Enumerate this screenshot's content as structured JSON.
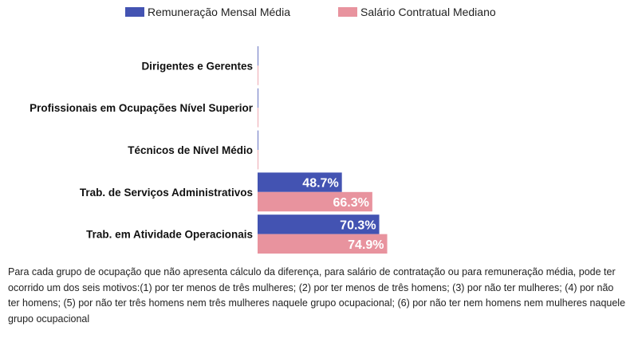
{
  "colors": {
    "series1": "#4353b2",
    "series2": "#e8939e"
  },
  "chart_data": {
    "type": "bar",
    "orientation": "horizontal",
    "title": "",
    "xlabel": "",
    "ylabel": "",
    "categories": [
      "Dirigentes e Gerentes",
      "Profissionais em Ocupações Nível Superior",
      "Técnicos de Nível Médio",
      "Trab. de Serviços Administrativos",
      "Trab. em Atividade Operacionais"
    ],
    "series": [
      {
        "name": "Remuneração Mensal Média",
        "values": [
          null,
          null,
          null,
          48.7,
          70.3
        ],
        "labels": [
          "",
          "",
          "",
          "48.7%",
          "70.3%"
        ]
      },
      {
        "name": "Salário Contratual Mediano",
        "values": [
          null,
          null,
          null,
          66.3,
          74.9
        ],
        "labels": [
          "",
          "",
          "",
          "66.3%",
          "74.9%"
        ]
      }
    ],
    "xlim": [
      0,
      100
    ],
    "grid": false,
    "legend_position": "top"
  },
  "footnote": "Para cada grupo de ocupação que não apresenta cálculo da diferença, para salário de contratação ou para remuneração média, pode ter ocorrido um dos seis motivos:(1) por ter menos de três mulheres; (2) por ter menos de três homens; (3) por não ter mulheres; (4) por não ter homens; (5) por não ter três homens nem três mulheres naquele grupo ocupacional; (6) por não ter nem homens nem mulheres naquele grupo ocupacional"
}
